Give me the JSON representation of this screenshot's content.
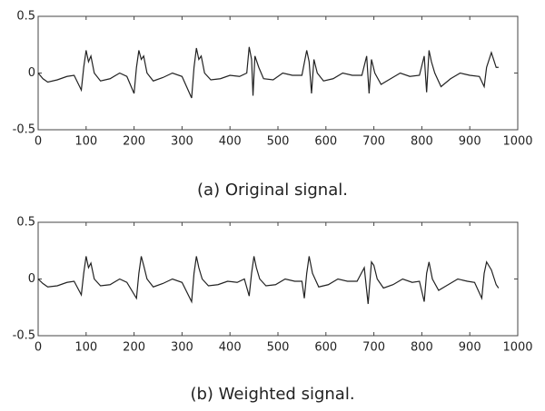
{
  "chart_data": [
    {
      "type": "line",
      "caption": "(a) Original signal.",
      "x": [
        0,
        10,
        20,
        40,
        60,
        75,
        90,
        95,
        100,
        105,
        110,
        117,
        130,
        150,
        170,
        185,
        200,
        205,
        210,
        215,
        220,
        227,
        240,
        260,
        280,
        300,
        320,
        325,
        330,
        335,
        340,
        347,
        360,
        380,
        400,
        420,
        435,
        440,
        445,
        448,
        452,
        460,
        470,
        490,
        510,
        530,
        550,
        560,
        565,
        570,
        575,
        582,
        595,
        615,
        635,
        655,
        675,
        685,
        690,
        695,
        702,
        715,
        735,
        755,
        775,
        795,
        805,
        810,
        815,
        820,
        827,
        840,
        860,
        880,
        900,
        920,
        930,
        935,
        945,
        955,
        960
      ],
      "series": [
        {
          "color": "#222222",
          "values": [
            0,
            -0.05,
            -0.08,
            -0.06,
            -0.03,
            -0.02,
            -0.15,
            0.05,
            0.2,
            0.1,
            0.15,
            0,
            -0.07,
            -0.05,
            0,
            -0.03,
            -0.18,
            0.05,
            0.2,
            0.12,
            0.15,
            0,
            -0.07,
            -0.04,
            0,
            -0.03,
            -0.22,
            0.05,
            0.22,
            0.12,
            0.15,
            0,
            -0.06,
            -0.05,
            -0.02,
            -0.03,
            0,
            0.23,
            0.12,
            -0.2,
            0.15,
            0.05,
            -0.05,
            -0.06,
            0,
            -0.02,
            -0.02,
            0.2,
            0.1,
            -0.18,
            0.12,
            0,
            -0.07,
            -0.05,
            0,
            -0.02,
            -0.02,
            0.15,
            -0.18,
            0.12,
            0,
            -0.1,
            -0.05,
            0,
            -0.03,
            -0.02,
            0.15,
            -0.17,
            0.2,
            0.1,
            0,
            -0.12,
            -0.05,
            0,
            -0.02,
            -0.03,
            -0.12,
            0.05,
            0.18,
            0.05,
            0.05
          ]
        }
      ],
      "xlim": [
        0,
        1000
      ],
      "xticks": [
        0,
        100,
        200,
        300,
        400,
        500,
        600,
        700,
        800,
        900,
        1000
      ],
      "ylim": [
        -0.5,
        0.5
      ],
      "yticks": [
        0.5,
        0,
        -0.5
      ]
    },
    {
      "type": "line",
      "caption": "(b) Weighted signal.",
      "x": [
        0,
        10,
        20,
        40,
        60,
        75,
        90,
        95,
        100,
        105,
        110,
        117,
        130,
        150,
        170,
        185,
        205,
        210,
        215,
        220,
        227,
        240,
        260,
        280,
        300,
        320,
        325,
        330,
        335,
        342,
        355,
        375,
        395,
        415,
        430,
        440,
        445,
        450,
        455,
        462,
        475,
        495,
        515,
        535,
        550,
        555,
        560,
        565,
        572,
        585,
        605,
        625,
        645,
        665,
        680,
        688,
        695,
        700,
        707,
        720,
        740,
        760,
        780,
        795,
        805,
        810,
        815,
        822,
        835,
        855,
        875,
        895,
        910,
        925,
        930,
        935,
        945,
        955,
        960
      ],
      "series": [
        {
          "color": "#222222",
          "values": [
            0,
            -0.04,
            -0.07,
            -0.06,
            -0.03,
            -0.02,
            -0.14,
            0.05,
            0.2,
            0.1,
            0.14,
            0,
            -0.06,
            -0.05,
            0,
            -0.03,
            -0.17,
            0.05,
            0.2,
            0.12,
            0,
            -0.07,
            -0.04,
            0,
            -0.03,
            -0.2,
            0.05,
            0.2,
            0.1,
            0,
            -0.06,
            -0.05,
            -0.02,
            -0.03,
            0,
            -0.15,
            0.05,
            0.2,
            0.1,
            0,
            -0.06,
            -0.05,
            0,
            -0.02,
            -0.02,
            -0.17,
            0.05,
            0.2,
            0.05,
            -0.07,
            -0.05,
            0,
            -0.02,
            -0.02,
            0.1,
            -0.22,
            0.15,
            0.12,
            0,
            -0.08,
            -0.05,
            0,
            -0.03,
            -0.02,
            -0.2,
            0.05,
            0.15,
            0,
            -0.1,
            -0.05,
            0,
            -0.02,
            -0.03,
            -0.17,
            0.05,
            0.15,
            0.08,
            -0.05,
            -0.08
          ]
        }
      ],
      "xlim": [
        0,
        1000
      ],
      "xticks": [
        0,
        100,
        200,
        300,
        400,
        500,
        600,
        700,
        800,
        900,
        1000
      ],
      "ylim": [
        -0.5,
        0.5
      ],
      "yticks": [
        0.5,
        0,
        -0.5
      ]
    }
  ]
}
